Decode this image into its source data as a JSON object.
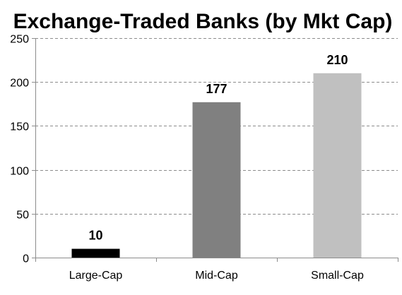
{
  "chart_data": {
    "type": "bar",
    "title": "Exchange-Traded Banks (by Mkt Cap)",
    "xlabel": "",
    "ylabel": "",
    "categories": [
      "Large-Cap",
      "Mid-Cap",
      "Small-Cap"
    ],
    "values": [
      10,
      177,
      210
    ],
    "data_labels": [
      "10",
      "177",
      "210"
    ],
    "bar_colors": [
      "#000000",
      "#808080",
      "#c0c0c0"
    ],
    "ylim": [
      0,
      250
    ],
    "yticks": [
      0,
      50,
      100,
      150,
      200,
      250
    ],
    "ytick_labels": [
      "0",
      "50",
      "100",
      "150",
      "200",
      "250"
    ],
    "grid": true,
    "grid_style": "dashed",
    "legend": "none"
  }
}
